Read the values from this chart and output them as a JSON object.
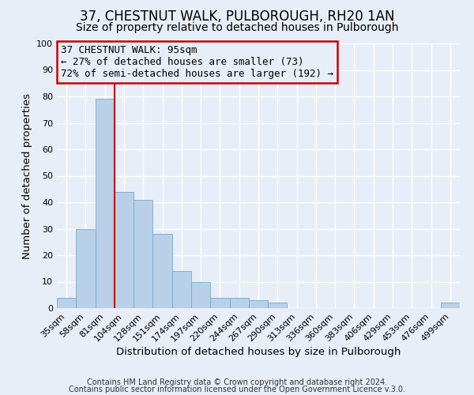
{
  "title": "37, CHESTNUT WALK, PULBOROUGH, RH20 1AN",
  "subtitle": "Size of property relative to detached houses in Pulborough",
  "xlabel": "Distribution of detached houses by size in Pulborough",
  "ylabel": "Number of detached properties",
  "bin_labels": [
    "35sqm",
    "58sqm",
    "81sqm",
    "104sqm",
    "128sqm",
    "151sqm",
    "174sqm",
    "197sqm",
    "220sqm",
    "244sqm",
    "267sqm",
    "290sqm",
    "313sqm",
    "336sqm",
    "360sqm",
    "383sqm",
    "406sqm",
    "429sqm",
    "453sqm",
    "476sqm",
    "499sqm"
  ],
  "bar_heights": [
    4,
    30,
    79,
    44,
    41,
    28,
    14,
    10,
    4,
    4,
    3,
    2,
    0,
    0,
    0,
    0,
    0,
    0,
    0,
    0,
    2
  ],
  "bar_color": "#b8d0e8",
  "bar_edge_color": "#7aaac8",
  "ylim": [
    0,
    100
  ],
  "yticks": [
    0,
    10,
    20,
    30,
    40,
    50,
    60,
    70,
    80,
    90,
    100
  ],
  "vline_color": "#cc0000",
  "annotation_title": "37 CHESTNUT WALK: 95sqm",
  "annotation_line1": "← 27% of detached houses are smaller (73)",
  "annotation_line2": "72% of semi-detached houses are larger (192) →",
  "annotation_box_color": "#cc0000",
  "footer1": "Contains HM Land Registry data © Crown copyright and database right 2024.",
  "footer2": "Contains public sector information licensed under the Open Government Licence v.3.0.",
  "bg_color": "#e8eef8",
  "grid_color": "#ffffff",
  "title_fontsize": 12,
  "subtitle_fontsize": 10,
  "label_fontsize": 9.5,
  "tick_fontsize": 8,
  "footer_fontsize": 7,
  "ann_fontsize": 9
}
